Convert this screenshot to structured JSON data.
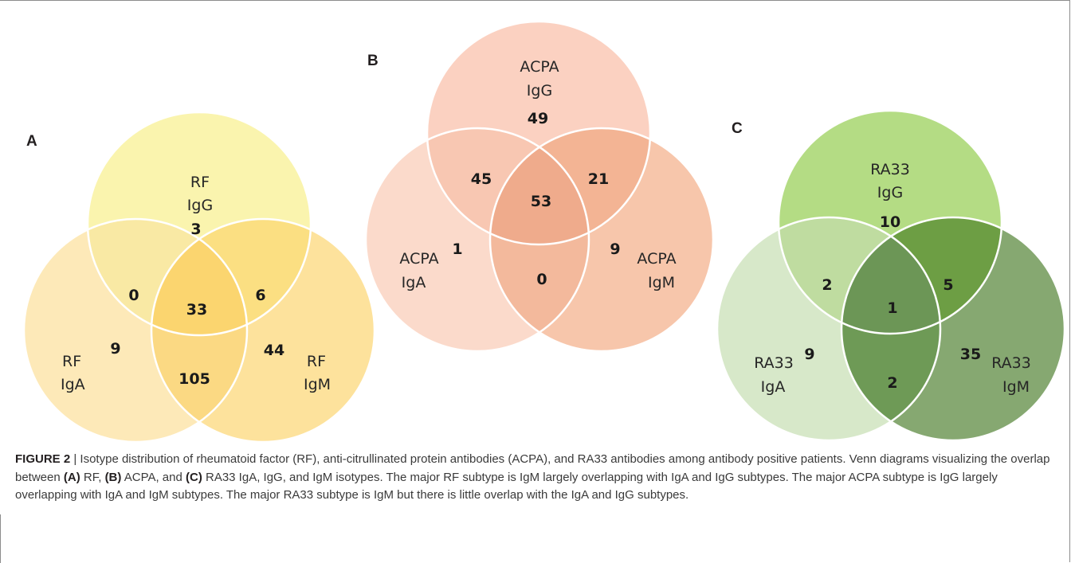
{
  "panels": {
    "a": {
      "letter": "A",
      "set_top": {
        "name": "RF",
        "isotype": "IgG"
      },
      "set_left": {
        "name": "RF",
        "isotype": "IgA"
      },
      "set_right": {
        "name": "RF",
        "isotype": "IgM"
      },
      "counts": {
        "top_only": "3",
        "left_only": "9",
        "right_only": "44",
        "top_left": "0",
        "top_right": "6",
        "left_right": "105",
        "all": "33"
      },
      "colors": {
        "top": "#faf4ae",
        "left": "#fde9b8",
        "right": "#fde29c",
        "top_left": "#f9e9a4",
        "top_right": "#fbdf82",
        "left_right": "#fbd983",
        "all": "#fbd56f"
      }
    },
    "b": {
      "letter": "B",
      "set_top": {
        "name": "ACPA",
        "isotype": "IgG"
      },
      "set_left": {
        "name": "ACPA",
        "isotype": "IgA"
      },
      "set_right": {
        "name": "ACPA",
        "isotype": "IgM"
      },
      "counts": {
        "top_only": "49",
        "left_only": "1",
        "right_only": "9",
        "top_left": "45",
        "top_right": "21",
        "left_right": "0",
        "all": "53"
      },
      "colors": {
        "top": "#fbd1c1",
        "left": "#fbdacb",
        "right": "#f7c6ab",
        "top_left": "#f8c7b2",
        "top_right": "#f3b494",
        "left_right": "#f3b99c",
        "all": "#efab8c"
      }
    },
    "c": {
      "letter": "C",
      "set_top": {
        "name": "RA33",
        "isotype": "IgG"
      },
      "set_left": {
        "name": "RA33",
        "isotype": "IgA"
      },
      "set_right": {
        "name": "RA33",
        "isotype": "IgM"
      },
      "counts": {
        "top_only": "10",
        "left_only": "9",
        "right_only": "35",
        "top_left": "2",
        "top_right": "5",
        "left_right": "2",
        "all": "1"
      },
      "colors": {
        "top": "#b4dc84",
        "left": "#d7e8c9",
        "right": "#86a871",
        "top_left": "#bfdca0",
        "top_right": "#6d9e44",
        "left_right": "#6e9a56",
        "all": "#6c9656"
      }
    }
  },
  "caption": {
    "figure_label": "FIGURE 2",
    "sep": " | ",
    "sentence1": "Isotype distribution of rheumatoid factor (RF), anti-citrullinated protein antibodies (ACPA), and RA33 antibodies among antibody positive patients. Venn diagrams visualizing the overlap between ",
    "ref_a": "(A)",
    "after_a": " RF, ",
    "ref_b": "(B)",
    "after_b": " ACPA, and ",
    "ref_c": "(C)",
    "after_c": " RA33 IgA, IgG, and IgM isotypes. The major RF subtype is IgM largely overlapping with IgA and IgG subtypes. The major ACPA subtype is IgG largely overlapping with IgA and IgM subtypes. The major RA33 subtype is IgM but there is little overlap with the IgA and IgG subtypes."
  }
}
